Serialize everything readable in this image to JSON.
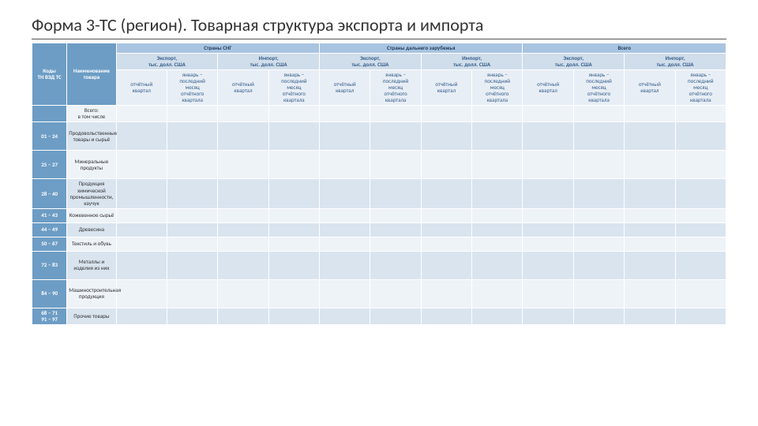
{
  "title": "Форма 3-ТС (регион). Товарная структура экспорта и импорта",
  "colors": {
    "hdr_group": "#a9c4e0",
    "hdr_sub": "#d0ddea",
    "hdr_sub2": "#e8eef5",
    "hdr_side": "#6d9dc5",
    "row_a": "#eef3f8",
    "row_b": "#d9e4ef",
    "border": "#ffffff"
  },
  "header": {
    "side_codes": "Коды\nТН ВЭД ТС",
    "side_name": "Наименование товара",
    "groups": [
      "Страны СНГ",
      "Страны дальнего зарубежья",
      "Всего"
    ],
    "sub_export": "Экспорт,\nтыс. долл. США",
    "sub_import": "Импорт,\nтыс. долл. США",
    "col_q": "отчётный\nквартал",
    "col_ytd": "январь –\nпоследний\nмесяц\nотчётного\nквартала"
  },
  "rows": [
    {
      "code": "",
      "name": "Всего:\nв том числе"
    },
    {
      "code": "01 – 24",
      "name": "Продовольственные товары и сырьё"
    },
    {
      "code": "25 – 27",
      "name": "Минеральные продукты"
    },
    {
      "code": "28 – 40",
      "name": "Продукция химической промышленности, каучук"
    },
    {
      "code": "41 – 43",
      "name": "Кожевенное сырьё"
    },
    {
      "code": "44 – 49",
      "name": "Древесина"
    },
    {
      "code": "50 – 67",
      "name": "Текстиль и обувь"
    },
    {
      "code": "72 – 83",
      "name": "Металлы и изделия из них"
    },
    {
      "code": "84 – 90",
      "name": "Машиностроительная продукция"
    },
    {
      "code": "68 – 71\n91 – 97",
      "name": "Прочие товары"
    }
  ],
  "layout": {
    "data_columns": 12,
    "font_size_pt": 7,
    "title_fontsize": 22
  }
}
